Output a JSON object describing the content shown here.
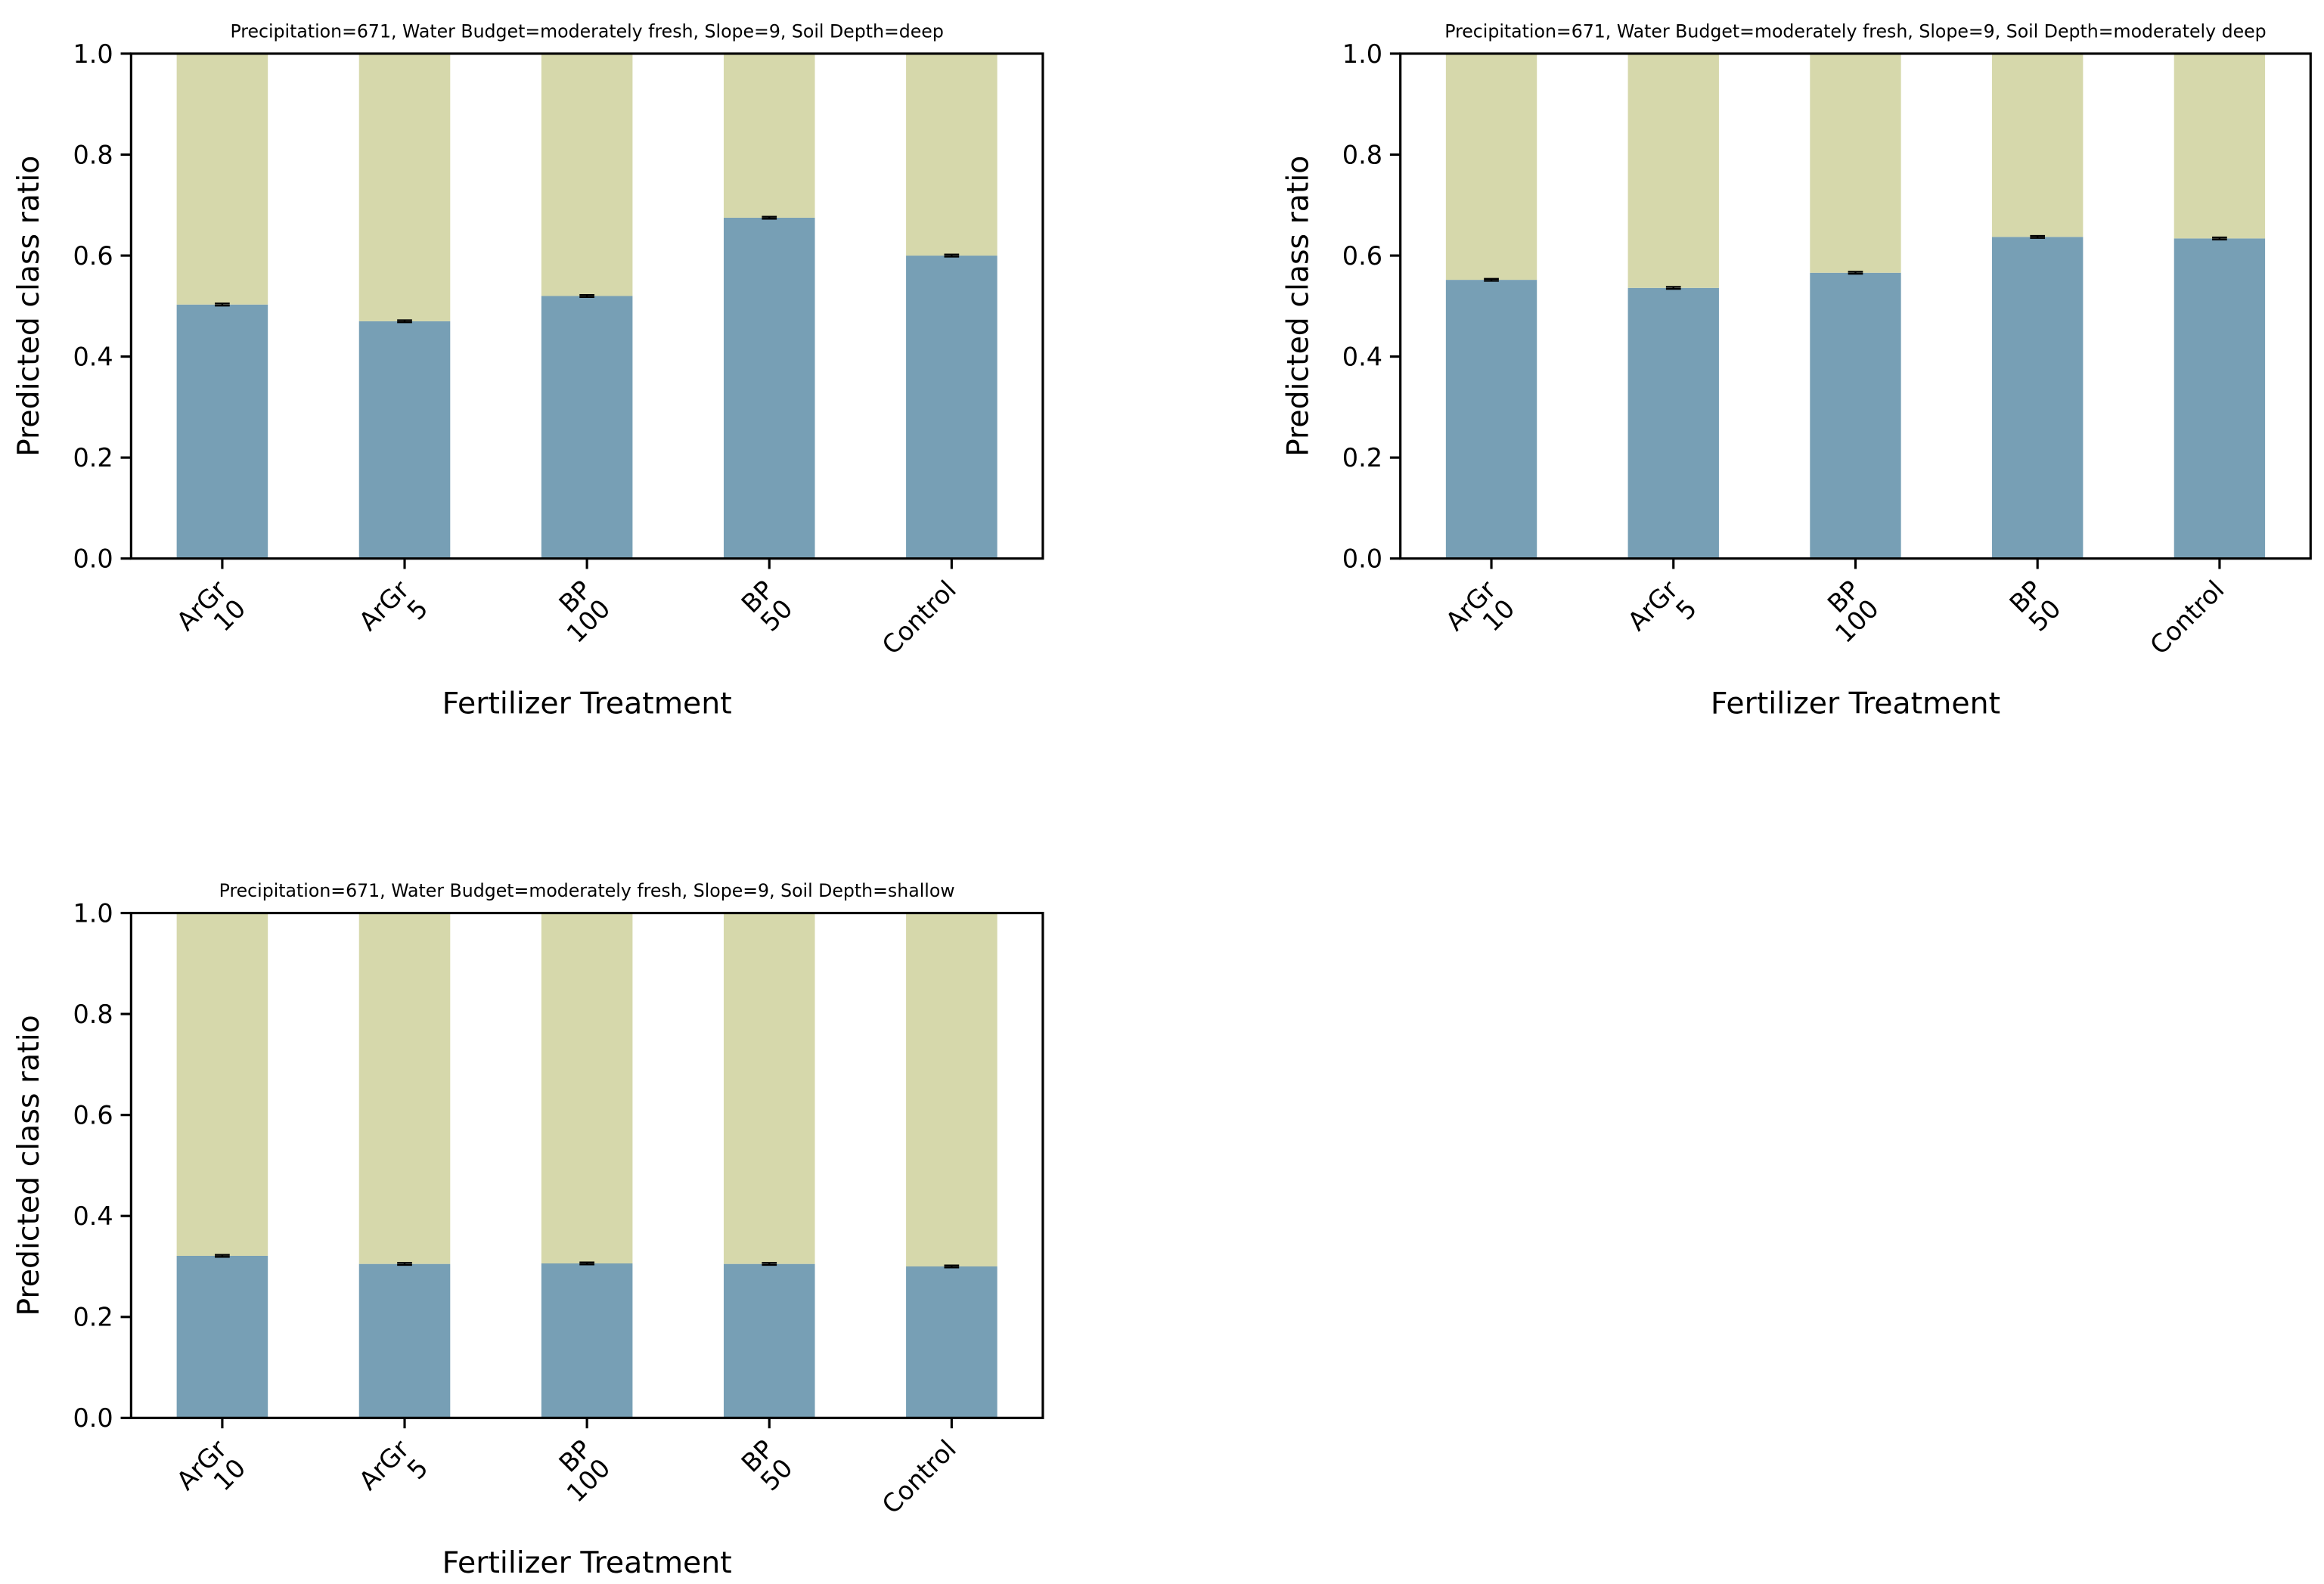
{
  "chart_data": [
    {
      "type": "bar",
      "stacked": true,
      "title": "Precipitation=671, Water Budget=moderately fresh, Slope=9, Soil Depth=deep",
      "xlabel": "Fertilizer Treatment",
      "ylabel": "Predicted class ratio",
      "categories": [
        "ArGr\n10",
        "ArGr\n5",
        "BP\n100",
        "BP\n50",
        "Control"
      ],
      "series": [
        {
          "color": "#779fb5",
          "values": [
            0.503,
            0.47,
            0.52,
            0.675,
            0.6
          ],
          "errors": [
            0.002,
            0.002,
            0.002,
            0.002,
            0.002
          ]
        },
        {
          "color": "#d6d8ab",
          "values": [
            0.497,
            0.53,
            0.48,
            0.325,
            0.4
          ]
        }
      ],
      "ylim": [
        0,
        1
      ],
      "yticks": [
        {
          "value": 0,
          "label": "0.0"
        },
        0.2,
        0.4,
        0.6,
        0.8,
        {
          "value": 1,
          "label": "1.0"
        }
      ]
    },
    {
      "type": "bar",
      "stacked": true,
      "title": "Precipitation=671, Water Budget=moderately fresh, Slope=9, Soil Depth=moderately deep",
      "xlabel": "Fertilizer Treatment",
      "ylabel": "Predicted class ratio",
      "categories": [
        "ArGr\n10",
        "ArGr\n5",
        "BP\n100",
        "BP\n50",
        "Control"
      ],
      "series": [
        {
          "color": "#779fb5",
          "values": [
            0.552,
            0.536,
            0.566,
            0.637,
            0.634
          ],
          "errors": [
            0.002,
            0.002,
            0.002,
            0.002,
            0.002
          ]
        },
        {
          "color": "#d6d8ab",
          "values": [
            0.448,
            0.464,
            0.434,
            0.363,
            0.366
          ]
        }
      ],
      "ylim": [
        0,
        1
      ],
      "yticks": [
        {
          "value": 0,
          "label": "0.0"
        },
        0.2,
        0.4,
        0.6,
        0.8,
        {
          "value": 1,
          "label": "1.0"
        }
      ]
    },
    {
      "type": "bar",
      "stacked": true,
      "title": "Precipitation=671, Water Budget=moderately fresh, Slope=9, Soil Depth=shallow",
      "xlabel": "Fertilizer Treatment",
      "ylabel": "Predicted class ratio",
      "categories": [
        "ArGr\n10",
        "ArGr\n5",
        "BP\n100",
        "BP\n50",
        "Control"
      ],
      "series": [
        {
          "color": "#779fb5",
          "values": [
            0.321,
            0.305,
            0.306,
            0.305,
            0.3
          ],
          "errors": [
            0.002,
            0.002,
            0.002,
            0.002,
            0.002
          ]
        },
        {
          "color": "#d6d8ab",
          "values": [
            0.679,
            0.695,
            0.694,
            0.695,
            0.7
          ]
        }
      ],
      "ylim": [
        0,
        1
      ],
      "yticks": [
        {
          "value": 0,
          "label": "0.0"
        },
        0.2,
        0.4,
        0.6,
        0.8,
        {
          "value": 1,
          "label": "1.0"
        }
      ]
    }
  ]
}
